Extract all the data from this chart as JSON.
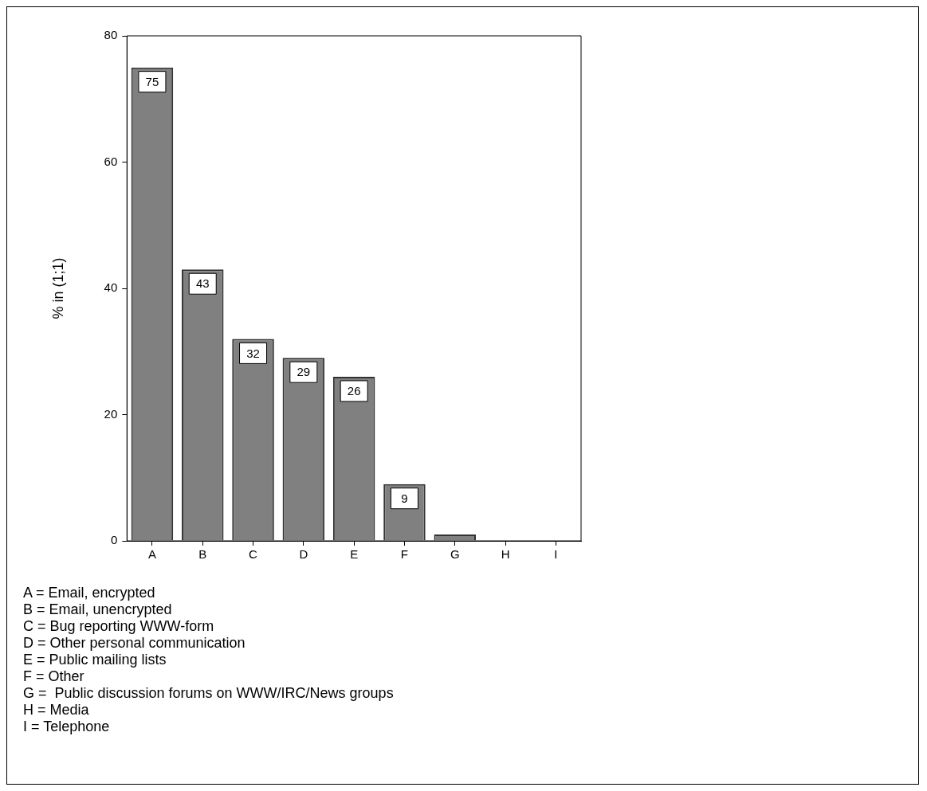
{
  "chart_data": {
    "type": "bar",
    "ylabel": "% in (1;1)",
    "categories": [
      "A",
      "B",
      "C",
      "D",
      "E",
      "F",
      "G",
      "H",
      "I"
    ],
    "values": [
      75,
      43,
      32,
      29,
      26,
      9,
      1,
      0,
      0
    ],
    "value_labels": [
      "75",
      "43",
      "32",
      "29",
      "26",
      "9",
      null,
      null,
      null
    ],
    "color": "#808080",
    "ylim": [
      0,
      80
    ],
    "yticks": [
      0,
      20,
      40,
      60,
      80
    ],
    "annotations": [
      "A = Email, encrypted",
      "B = Email, unencrypted",
      "C = Bug reporting WWW-form",
      "D = Other personal communication",
      "E = Public mailing lists",
      "F = Other",
      "G =  Public discussion forums on WWW/IRC/News groups",
      "H = Media",
      "I = Telephone"
    ]
  }
}
